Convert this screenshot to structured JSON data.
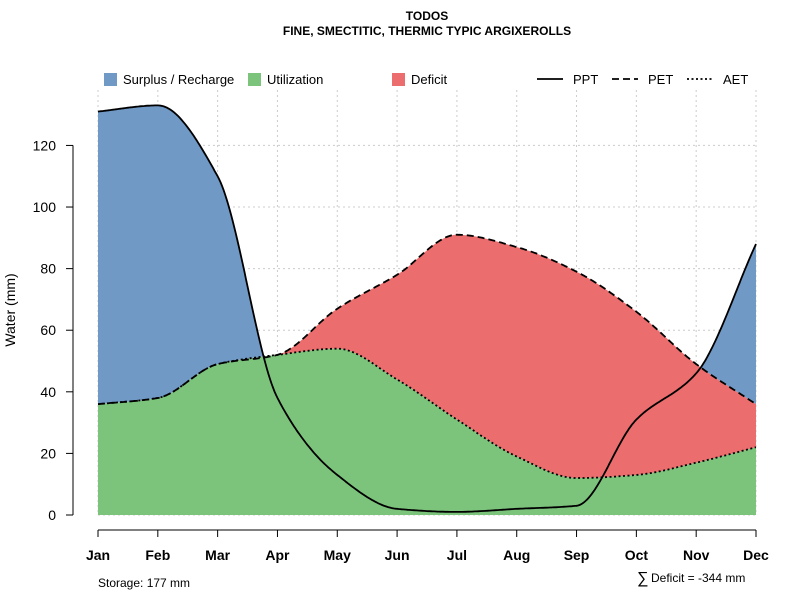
{
  "chart_data": {
    "type": "area",
    "title": "TODOS",
    "subtitle": "FINE, SMECTITIC, THERMIC TYPIC ARGIXEROLLS",
    "ylabel": "Water (mm)",
    "xlabel": "",
    "ylim": [
      0,
      138
    ],
    "yticks": [
      0,
      20,
      40,
      60,
      80,
      100,
      120
    ],
    "categories": [
      "Jan",
      "Feb",
      "Mar",
      "Apr",
      "May",
      "Jun",
      "Jul",
      "Aug",
      "Sep",
      "Oct",
      "Nov",
      "Dec"
    ],
    "grid": true,
    "legend": {
      "placement": "top",
      "fill_items": [
        {
          "label": "Surplus / Recharge",
          "color": "#7099C6"
        },
        {
          "label": "Utilization",
          "color": "#7CC47C"
        },
        {
          "label": "Deficit",
          "color": "#EB6D6D"
        }
      ],
      "line_items": [
        {
          "label": "PPT",
          "style": "solid"
        },
        {
          "label": "PET",
          "style": "dashed"
        },
        {
          "label": "AET",
          "style": "dotted"
        }
      ]
    },
    "series": [
      {
        "name": "PPT",
        "style": "solid",
        "values": [
          131,
          133,
          110,
          38,
          13,
          2,
          1,
          2,
          3,
          31,
          46,
          88
        ]
      },
      {
        "name": "PET",
        "style": "dashed",
        "values": [
          36,
          38,
          49,
          52,
          67,
          78,
          91,
          87,
          79,
          66,
          49,
          36
        ]
      },
      {
        "name": "AET",
        "style": "dotted",
        "values": [
          36,
          38,
          49,
          52,
          54,
          44,
          31,
          19,
          12,
          13,
          17,
          22
        ]
      }
    ],
    "annotations": {
      "storage": "Storage: 177 mm",
      "deficit_symbol": "∑",
      "deficit": "Deficit = -344 mm"
    }
  }
}
